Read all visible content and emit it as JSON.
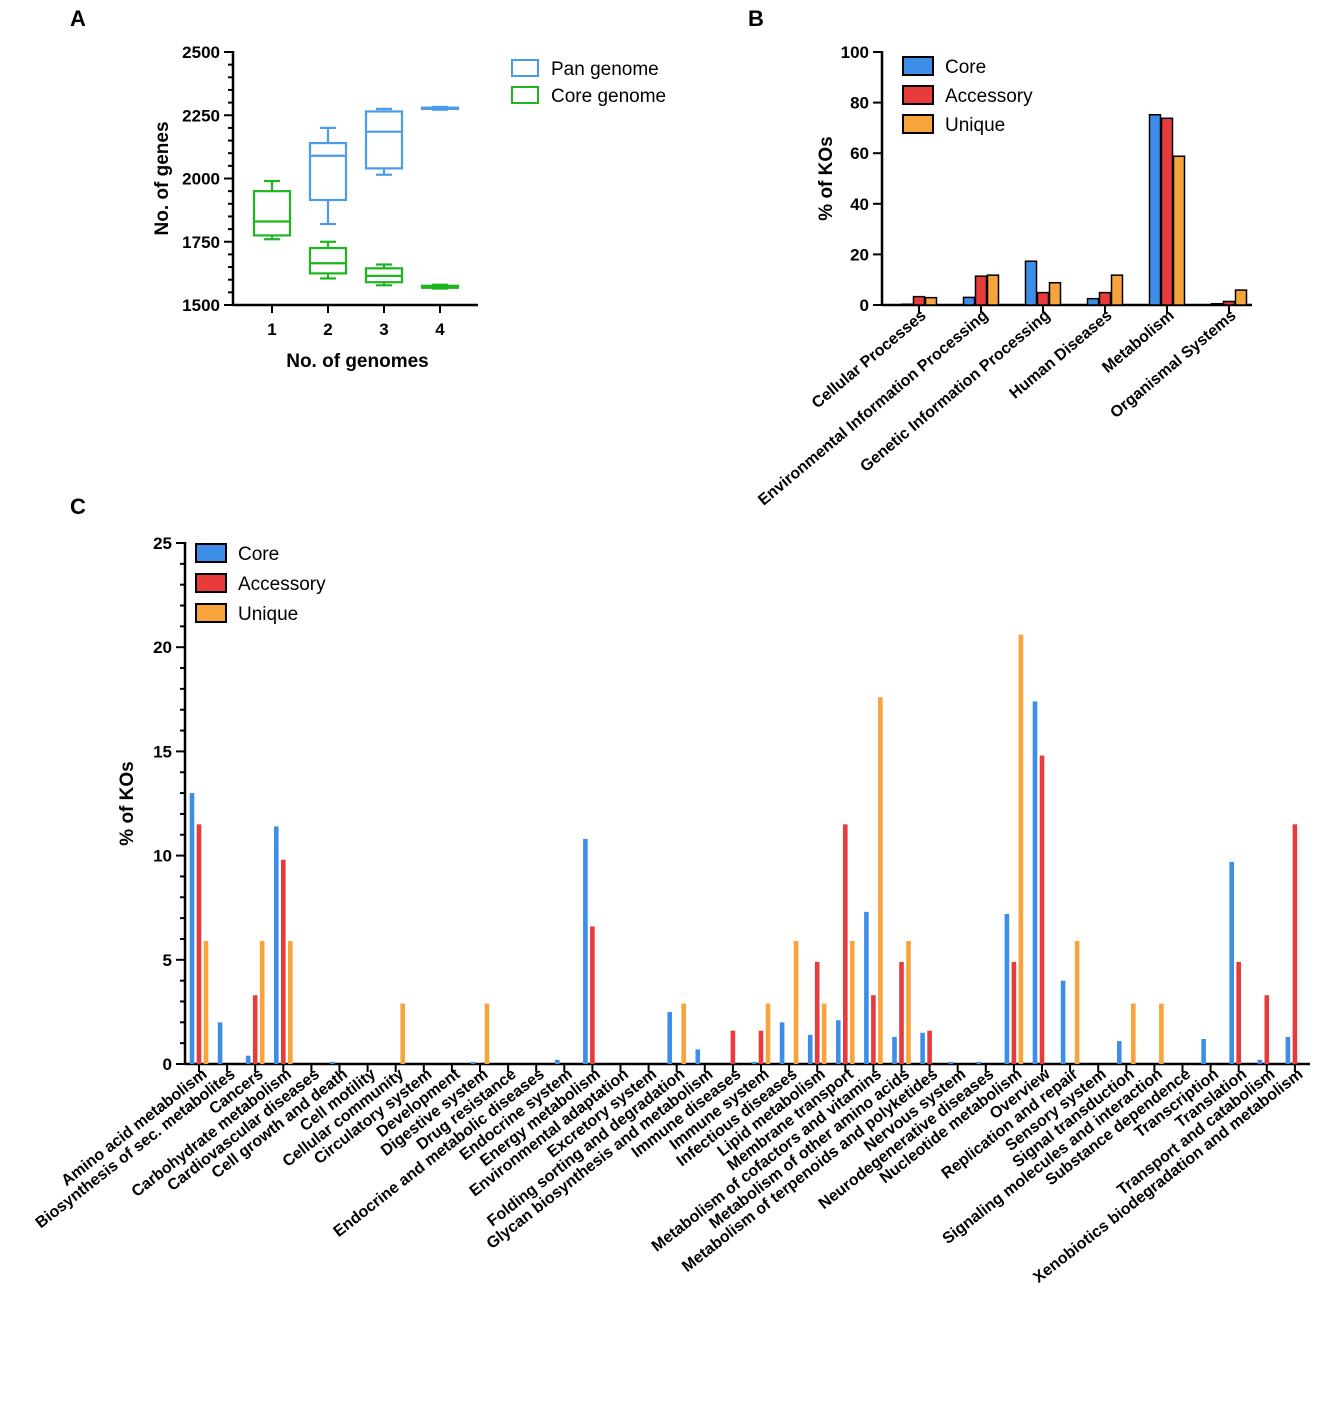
{
  "chart_data": [
    {
      "panel": "A",
      "type": "box",
      "xlabel": "No. of genomes",
      "ylabel": "No. of genes",
      "ylim": [
        1500,
        2500
      ],
      "yticks": [
        1500,
        1750,
        2000,
        2250,
        2500
      ],
      "x": [
        "1",
        "2",
        "3",
        "4"
      ],
      "legend": [
        "Pan genome",
        "Core genome"
      ],
      "series": [
        {
          "name": "Pan genome",
          "color": "#4a9be8",
          "boxes": [
            {
              "x": 2,
              "min": 1820,
              "q1": 1915,
              "median": 2090,
              "q3": 2140,
              "max": 2200
            },
            {
              "x": 3,
              "min": 2015,
              "q1": 2040,
              "median": 2185,
              "q3": 2265,
              "max": 2275
            },
            {
              "x": 4,
              "min": 2272,
              "q1": 2275,
              "median": 2278,
              "q3": 2280,
              "max": 2283
            }
          ]
        },
        {
          "name": "Core genome",
          "color": "#1fb51f",
          "boxes": [
            {
              "x": 1,
              "min": 1760,
              "q1": 1775,
              "median": 1830,
              "q3": 1950,
              "max": 1990
            },
            {
              "x": 2,
              "min": 1605,
              "q1": 1625,
              "median": 1665,
              "q3": 1725,
              "max": 1750
            },
            {
              "x": 3,
              "min": 1578,
              "q1": 1590,
              "median": 1615,
              "q3": 1645,
              "max": 1660
            },
            {
              "x": 4,
              "min": 1565,
              "q1": 1568,
              "median": 1572,
              "q3": 1576,
              "max": 1580
            }
          ]
        }
      ]
    },
    {
      "panel": "B",
      "type": "bar",
      "ylabel": "% of KOs",
      "ylim": [
        0,
        100
      ],
      "yticks": [
        0,
        20,
        40,
        60,
        80,
        100
      ],
      "categories": [
        "Cellular Processes",
        "Environmental Information Processing",
        "Genetic Information Processing",
        "Human Diseases",
        "Metabolism",
        "Organismal Systems"
      ],
      "series": [
        {
          "name": "Core",
          "color": "#3d8ee8",
          "values": [
            0.3,
            3.0,
            17.3,
            2.5,
            75.2,
            0.5
          ]
        },
        {
          "name": "Accessory",
          "color": "#e83b3b",
          "values": [
            3.3,
            11.4,
            4.9,
            4.9,
            73.8,
            1.4
          ]
        },
        {
          "name": "Unique",
          "color": "#f7a43d",
          "values": [
            2.9,
            11.8,
            8.8,
            11.8,
            58.8,
            5.9
          ]
        }
      ]
    },
    {
      "panel": "C",
      "type": "bar",
      "ylabel": "% of KOs",
      "ylim": [
        0,
        25
      ],
      "yticks": [
        0,
        5,
        10,
        15,
        20,
        25
      ],
      "categories": [
        "Amino acid metabolism",
        "Biosynthesis of sec. metabolites",
        "Cancers",
        "Carbohydrate metabolism",
        "Cardiovascular diseases",
        "Cell growth and death",
        "Cell motility",
        "Cellular community",
        "Circulatory system",
        "Development",
        "Digestive system",
        "Drug resistance",
        "Endocrine and metabolic diseases",
        "Endocrine system",
        "Energy metabolism",
        "Environmental adaptation",
        "Excretory system",
        "Folding sorting and degradation",
        "Glycan biosynthesis and metabolism",
        "Immune diseases",
        "Immune system",
        "Infectious diseases",
        "Lipid metabolism",
        "Membrane transport",
        "Metabolism of cofactors and vitamins",
        "Metabolism of other amino acids",
        "Metabolism of terpenoids and polyketides",
        "Nervous system",
        "Neurodegenerative diseases",
        "Nucleotide metabolism",
        "Overview",
        "Replication and repair",
        "Sensory system",
        "Signal transduction",
        "Signaling molecules and interaction",
        "Substance dependence",
        "Transcription",
        "Translation",
        "Transport and catabolism",
        "Xenobiotics biodegradation and metabolism"
      ],
      "series": [
        {
          "name": "Core",
          "color": "#3d8ee8",
          "values": [
            13.0,
            2.0,
            0.4,
            11.4,
            0,
            0.1,
            0,
            0,
            0,
            0,
            0.1,
            0,
            0,
            0.2,
            10.8,
            0,
            0,
            2.5,
            0.7,
            0,
            0.1,
            2.0,
            1.4,
            2.1,
            7.3,
            1.3,
            1.5,
            0.1,
            0.1,
            7.2,
            17.4,
            4.0,
            0,
            1.1,
            0,
            0,
            1.2,
            9.7,
            0.2,
            1.3
          ]
        },
        {
          "name": "Accessory",
          "color": "#e83b3b",
          "values": [
            11.5,
            0,
            3.3,
            9.8,
            0,
            0,
            0,
            0,
            0,
            0,
            0,
            0,
            0,
            0,
            6.6,
            0,
            0,
            0,
            0,
            1.6,
            1.6,
            0,
            4.9,
            11.5,
            3.3,
            4.9,
            1.6,
            0,
            0,
            4.9,
            14.8,
            0,
            0,
            0,
            0,
            0,
            0,
            4.9,
            3.3,
            11.5
          ]
        },
        {
          "name": "Unique",
          "color": "#f7a43d",
          "values": [
            5.9,
            0,
            5.9,
            5.9,
            0,
            0,
            0,
            2.9,
            0,
            0,
            2.9,
            0,
            0,
            0,
            0,
            0,
            0,
            2.9,
            0,
            0,
            2.9,
            5.9,
            2.9,
            5.9,
            17.6,
            5.9,
            0,
            0,
            0,
            20.6,
            0,
            5.9,
            0,
            2.9,
            2.9,
            0,
            0,
            0,
            0,
            0
          ]
        }
      ]
    }
  ]
}
